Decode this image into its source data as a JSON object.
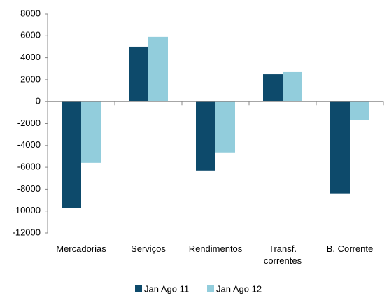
{
  "chart_data": {
    "type": "bar",
    "categories": [
      "Mercadorias",
      "Serviços",
      "Rendimentos",
      "Transf. correntes",
      "B. Corrente"
    ],
    "series": [
      {
        "name": "Jan Ago 11",
        "color": "#0d4a6b",
        "values": [
          -9700,
          5000,
          -6300,
          2500,
          -8400
        ]
      },
      {
        "name": "Jan Ago 12",
        "color": "#92cddc",
        "values": [
          -5600,
          5900,
          -4700,
          2700,
          -1700
        ]
      }
    ],
    "ylim": [
      -12000,
      8000
    ],
    "yticks": [
      -12000,
      -10000,
      -8000,
      -6000,
      -4000,
      -2000,
      0,
      2000,
      4000,
      6000,
      8000
    ],
    "grid": false,
    "legend": "bottom"
  }
}
